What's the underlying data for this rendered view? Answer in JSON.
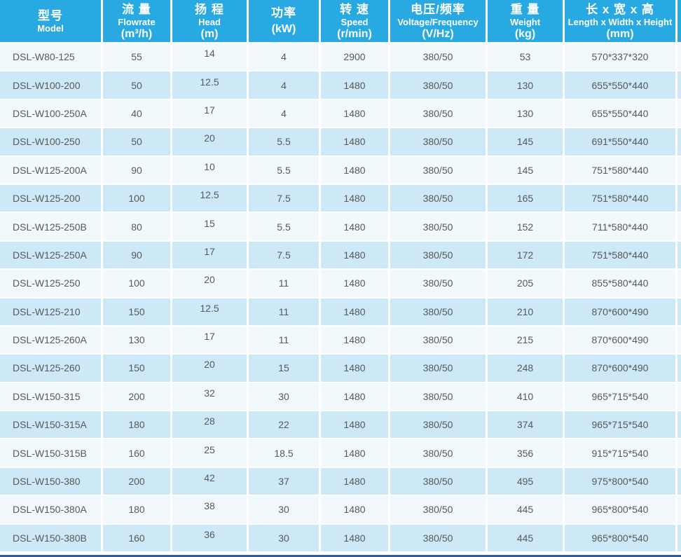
{
  "chart_data": {
    "type": "table",
    "title": "",
    "columns": [
      {
        "id": "model",
        "zh": "型号",
        "en": "Model",
        "unit": ""
      },
      {
        "id": "flowrate",
        "zh": "流 量",
        "en": "Flowrate",
        "unit": "(m³/h)"
      },
      {
        "id": "head",
        "zh": "扬 程",
        "en": "Head",
        "unit": "(m)"
      },
      {
        "id": "power",
        "zh": "功率",
        "en": "",
        "unit": "(kW)"
      },
      {
        "id": "speed",
        "zh": "转 速",
        "en": "Speed",
        "unit": "(r/min)"
      },
      {
        "id": "voltage",
        "zh": "电压/频率",
        "en": "Voltage/Frequency",
        "unit": "(V/Hz)"
      },
      {
        "id": "weight",
        "zh": "重 量",
        "en": "Weight",
        "unit": "(kg)"
      },
      {
        "id": "dimensions",
        "zh": "长 x 宽 x 高",
        "en": "Length x Width x Height",
        "unit": "(mm)"
      }
    ],
    "rows": [
      [
        "DSL-W80-125",
        "55",
        "14",
        "4",
        "2900",
        "380/50",
        "53",
        "570*337*320"
      ],
      [
        "DSL-W100-200",
        "50",
        "12.5",
        "4",
        "1480",
        "380/50",
        "130",
        "655*550*440"
      ],
      [
        "DSL-W100-250A",
        "40",
        "17",
        "4",
        "1480",
        "380/50",
        "130",
        "655*550*440"
      ],
      [
        "DSL-W100-250",
        "50",
        "20",
        "5.5",
        "1480",
        "380/50",
        "145",
        "691*550*440"
      ],
      [
        "DSL-W125-200A",
        "90",
        "10",
        "5.5",
        "1480",
        "380/50",
        "145",
        "751*580*440"
      ],
      [
        "DSL-W125-200",
        "100",
        "12.5",
        "7.5",
        "1480",
        "380/50",
        "165",
        "751*580*440"
      ],
      [
        "DSL-W125-250B",
        "80",
        "15",
        "5.5",
        "1480",
        "380/50",
        "152",
        "711*580*440"
      ],
      [
        "DSL-W125-250A",
        "90",
        "17",
        "7.5",
        "1480",
        "380/50",
        "172",
        "751*580*440"
      ],
      [
        "DSL-W125-250",
        "100",
        "20",
        "11",
        "1480",
        "380/50",
        "205",
        "855*580*440"
      ],
      [
        "DSL-W125-210",
        "150",
        "12.5",
        "11",
        "1480",
        "380/50",
        "210",
        "870*600*490"
      ],
      [
        "DSL-W125-260A",
        "130",
        "17",
        "11",
        "1480",
        "380/50",
        "215",
        "870*600*490"
      ],
      [
        "DSL-W125-260",
        "150",
        "20",
        "15",
        "1480",
        "380/50",
        "248",
        "870*600*490"
      ],
      [
        "DSL-W150-315",
        "200",
        "32",
        "30",
        "1480",
        "380/50",
        "410",
        "965*715*540"
      ],
      [
        "DSL-W150-315A",
        "180",
        "28",
        "22",
        "1480",
        "380/50",
        "374",
        "965*715*540"
      ],
      [
        "DSL-W150-315B",
        "160",
        "25",
        "18.5",
        "1480",
        "380/50",
        "356",
        "915*715*540"
      ],
      [
        "DSL-W150-380",
        "200",
        "42",
        "37",
        "1480",
        "380/50",
        "495",
        "975*800*540"
      ],
      [
        "DSL-W150-380A",
        "180",
        "38",
        "30",
        "1480",
        "380/50",
        "445",
        "965*800*540"
      ],
      [
        "DSL-W150-380B",
        "160",
        "36",
        "30",
        "1480",
        "380/50",
        "445",
        "965*800*540"
      ]
    ],
    "layout": {
      "grid": "off",
      "alternating_rows": true,
      "header_position": "top"
    }
  },
  "colors": {
    "header_bg": "#29A9E1",
    "header_text": "#FFFFFF",
    "row_odd_bg": "#F2F9FD",
    "row_even_bg": "#CDE8F7",
    "cell_text": "#58595B",
    "gap": "#FFFFFF",
    "bottom_line": "#2A5D9F"
  }
}
